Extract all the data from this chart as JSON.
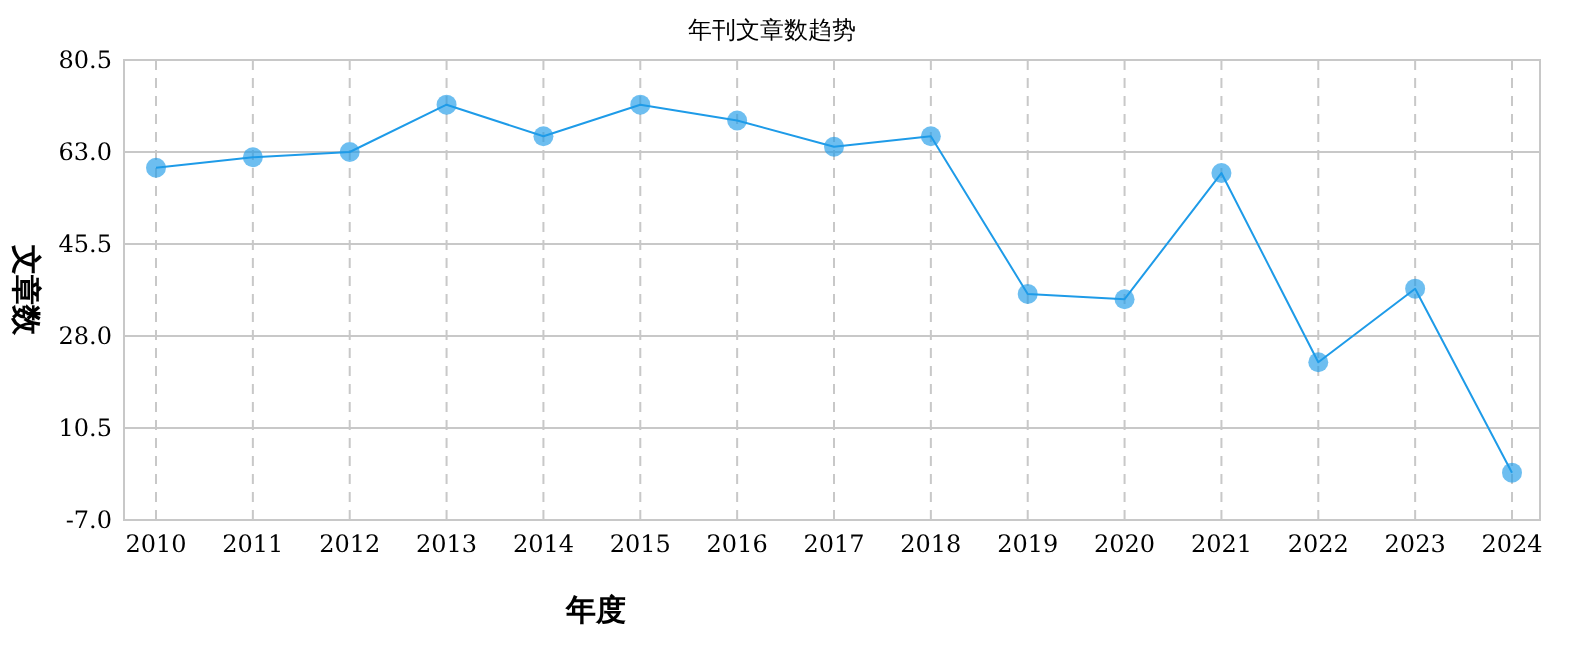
{
  "chart_data": {
    "type": "line",
    "title": "年刊文章数趋势",
    "xlabel": "年度",
    "ylabel": "文章数",
    "categories": [
      "2010",
      "2011",
      "2012",
      "2013",
      "2014",
      "2015",
      "2016",
      "2017",
      "2018",
      "2019",
      "2020",
      "2021",
      "2022",
      "2023",
      "2024"
    ],
    "series": [
      {
        "color": "#1e9be8",
        "values": [
          60,
          62,
          63,
          72,
          66,
          72,
          69,
          64,
          66,
          36,
          35,
          59,
          23,
          37,
          2
        ]
      }
    ],
    "ylim": [
      -7.0,
      80.5
    ],
    "yticks": [
      {
        "value": -7,
        "label": "-7.0"
      },
      {
        "value": 10.5,
        "label": "10.5"
      },
      {
        "value": 28,
        "label": "28.0"
      },
      {
        "value": 45.5,
        "label": "45.5"
      },
      {
        "value": 63,
        "label": "63.0"
      },
      {
        "value": 80.5,
        "label": "80.5"
      }
    ],
    "grid": true,
    "marker": "circle",
    "line_style": "solid"
  }
}
